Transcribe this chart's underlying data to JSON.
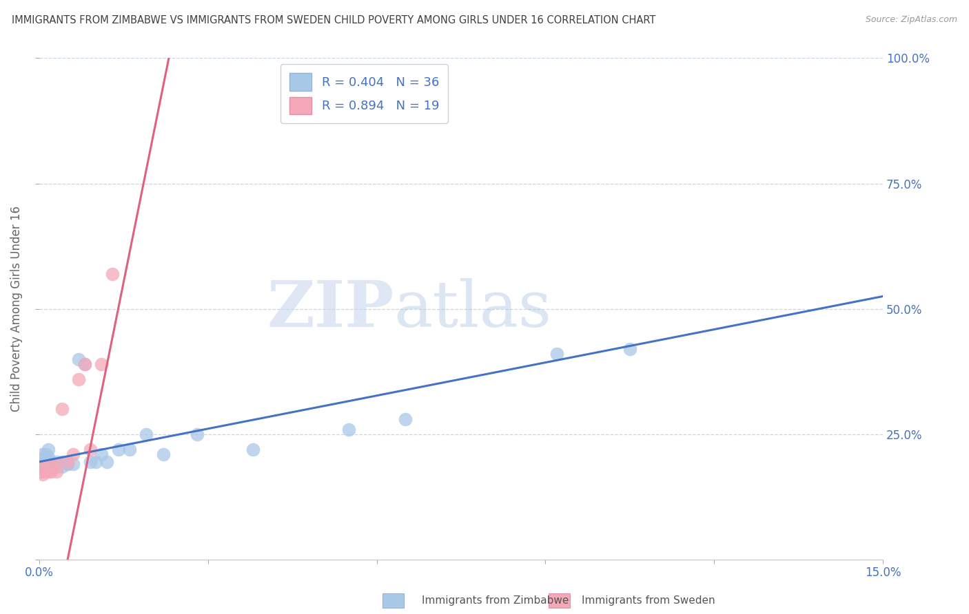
{
  "title": "IMMIGRANTS FROM ZIMBABWE VS IMMIGRANTS FROM SWEDEN CHILD POVERTY AMONG GIRLS UNDER 16 CORRELATION CHART",
  "source": "Source: ZipAtlas.com",
  "ylabel": "Child Poverty Among Girls Under 16",
  "watermark_left": "ZIP",
  "watermark_right": "atlas",
  "legend_r1": "R = 0.404",
  "legend_n1": "N = 36",
  "legend_r2": "R = 0.894",
  "legend_n2": "N = 19",
  "color_zimbabwe": "#a8c8e8",
  "color_sweden": "#f4a8b8",
  "line_color_zimbabwe": "#4472c4",
  "line_color_sweden": "#e06080",
  "background_color": "#ffffff",
  "grid_color": "#c8d4e8",
  "title_color": "#404040",
  "axis_label_color": "#4472c4",
  "legend_text_color": "#4472c4",
  "xmin": 0.0,
  "xmax": 0.15,
  "ymin": 0.0,
  "ymax": 1.0,
  "zim_x": [
    0.0002,
    0.0004,
    0.0005,
    0.0008,
    0.001,
    0.001,
    0.0012,
    0.0013,
    0.0015,
    0.0015,
    0.002,
    0.002,
    0.0025,
    0.003,
    0.003,
    0.004,
    0.004,
    0.005,
    0.005,
    0.006,
    0.007,
    0.008,
    0.009,
    0.01,
    0.011,
    0.012,
    0.014,
    0.016,
    0.019,
    0.022,
    0.028,
    0.038,
    0.055,
    0.065,
    0.092,
    0.105
  ],
  "zim_y": [
    0.2,
    0.21,
    0.19,
    0.195,
    0.2,
    0.185,
    0.21,
    0.195,
    0.22,
    0.205,
    0.195,
    0.185,
    0.19,
    0.195,
    0.185,
    0.195,
    0.185,
    0.19,
    0.19,
    0.19,
    0.4,
    0.39,
    0.195,
    0.195,
    0.21,
    0.195,
    0.22,
    0.22,
    0.25,
    0.21,
    0.25,
    0.22,
    0.26,
    0.28,
    0.41,
    0.42
  ],
  "swe_x": [
    0.0002,
    0.0004,
    0.0006,
    0.001,
    0.001,
    0.0012,
    0.0015,
    0.002,
    0.002,
    0.003,
    0.003,
    0.004,
    0.005,
    0.006,
    0.007,
    0.008,
    0.009,
    0.011,
    0.013
  ],
  "swe_y": [
    0.175,
    0.18,
    0.17,
    0.185,
    0.175,
    0.18,
    0.175,
    0.185,
    0.175,
    0.19,
    0.175,
    0.3,
    0.195,
    0.21,
    0.36,
    0.39,
    0.22,
    0.39,
    0.57
  ],
  "legend_box_color": "#e8e8f0",
  "legend_box_edge": "#c8c8d8"
}
